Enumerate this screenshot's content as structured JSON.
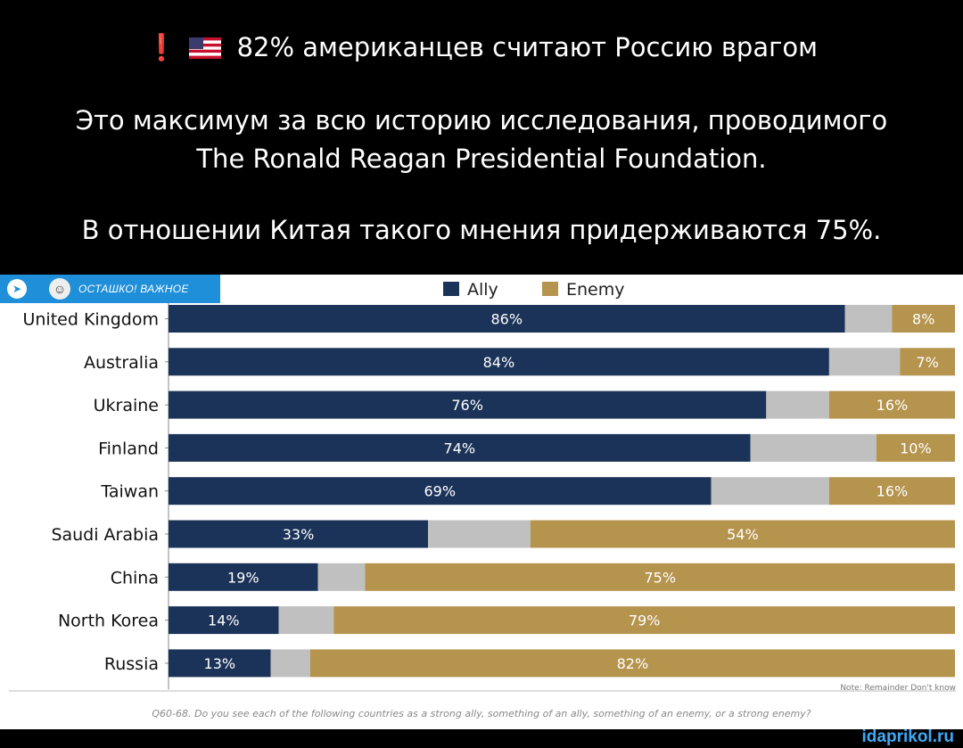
{
  "header": {
    "line1_text": "82% американцев считают Россию врагом",
    "line2": "Это максимум за всю историю исследования, проводимого",
    "line3": "The Ronald Reagan Presidential Foundation.",
    "line4": "В отношении Китая такого мнения придерживаются 75%."
  },
  "badge": {
    "text": "ОСТАШКО! ВАЖНОЕ",
    "icon": "telegram-plane-icon"
  },
  "watermark": "idaprikol.ru",
  "colors": {
    "ally": "#1b3358",
    "remainder": "#c0c0c0",
    "enemy": "#b5944e",
    "badge": "#1e8fd8"
  },
  "chart_data": {
    "type": "bar",
    "orientation": "horizontal-stacked",
    "categories": [
      "United Kingdom",
      "Australia",
      "Ukraine",
      "Finland",
      "Taiwan",
      "Saudi Arabia",
      "China",
      "North Korea",
      "Russia"
    ],
    "series": [
      {
        "name": "Ally",
        "values": [
          86,
          84,
          76,
          74,
          69,
          33,
          19,
          14,
          13
        ]
      },
      {
        "name": "Enemy",
        "values": [
          8,
          7,
          16,
          10,
          16,
          54,
          75,
          79,
          82
        ]
      }
    ],
    "note": "Note: Remainder Don't know",
    "question": "Q60-68. Do you see each of the following countries as a strong ally, something of an ally, something of an enemy, or a strong enemy?",
    "legend_position": "top",
    "xlim": [
      0,
      100
    ],
    "grid": false
  }
}
